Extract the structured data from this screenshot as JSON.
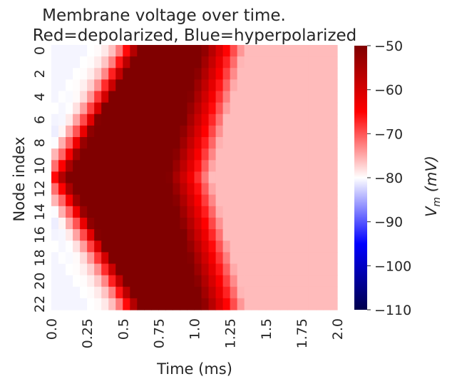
{
  "chart_data": {
    "type": "heatmap",
    "title_lines": [
      "Membrane voltage over time.",
      "Red=depolarized, Blue=hyperpolarized"
    ],
    "xlabel": "Time (ms)",
    "ylabel": "Node index",
    "x_tick_labels": [
      "0.0",
      "0.25",
      "0.5",
      "0.75",
      "1.0",
      "1.25",
      "1.5",
      "1.75",
      "2.0"
    ],
    "x_range_ms": [
      0,
      2.0
    ],
    "y_tick_labels": [
      "0",
      "2",
      "4",
      "6",
      "8",
      "10",
      "12",
      "14",
      "16",
      "18",
      "20",
      "22"
    ],
    "n_nodes": 23,
    "stimulus_node": 11,
    "colormap": "seismic",
    "colorbar": {
      "label": "V_m (mV)",
      "label_main": "V",
      "label_sub": "m",
      "label_unit": " (mV)",
      "vmin": -110,
      "vmax": -50,
      "ticks": [
        -50,
        -60,
        -70,
        -80,
        -90,
        -100,
        -110
      ],
      "tick_labels": [
        "−50",
        "−60",
        "−70",
        "−80",
        "−90",
        "−100",
        "−110"
      ]
    },
    "resting_potential_mV": -80,
    "peak_potential_mV": -50,
    "afterpotential_mV": -76,
    "spike_onset_ms": {
      "stimulus_node": 0.1,
      "edge_nodes": 0.6
    },
    "repolarization_ms": {
      "stimulus_node": 0.82,
      "edge_nodes": 1.05
    }
  },
  "colors": {
    "background": "#ffffff",
    "text": "#262626"
  }
}
